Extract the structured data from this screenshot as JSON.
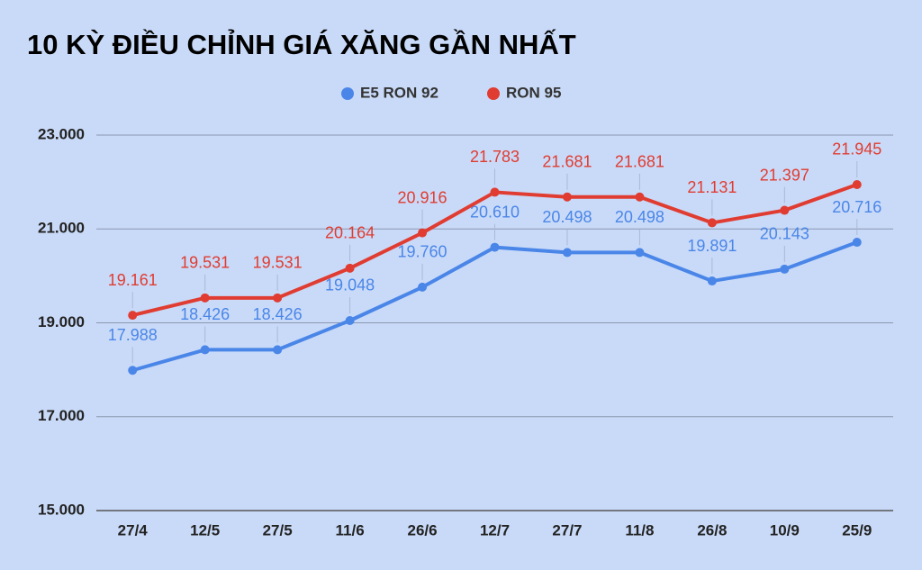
{
  "chart_data": {
    "type": "line",
    "title": "10 KỲ ĐIỀU CHỈNH GIÁ XĂNG GẦN NHẤT",
    "categories": [
      "27/4",
      "12/5",
      "27/5",
      "11/6",
      "26/6",
      "12/7",
      "27/7",
      "11/8",
      "26/8",
      "10/9",
      "25/9"
    ],
    "series": [
      {
        "name": "E5 RON 92",
        "color": "#4a86e8",
        "values": [
          17988,
          18426,
          18426,
          19048,
          19760,
          20610,
          20498,
          20498,
          19891,
          20143,
          20716
        ],
        "value_labels": [
          "17.988",
          "18.426",
          "18.426",
          "19.048",
          "19.760",
          "20.610",
          "20.498",
          "20.498",
          "19.891",
          "20.143",
          "20.716"
        ]
      },
      {
        "name": "RON 95",
        "color": "#e03c31",
        "values": [
          19161,
          19531,
          19531,
          20164,
          20916,
          21783,
          21681,
          21681,
          21131,
          21397,
          21945
        ],
        "value_labels": [
          "19.161",
          "19.531",
          "19.531",
          "20.164",
          "20.916",
          "21.783",
          "21.681",
          "21.681",
          "21.131",
          "21.397",
          "21.945"
        ]
      }
    ],
    "ylim": [
      15000,
      23000
    ],
    "yticks": [
      {
        "value": 15000,
        "label": "15.000"
      },
      {
        "value": 17000,
        "label": "17.000"
      },
      {
        "value": 19000,
        "label": "19.000"
      },
      {
        "value": 21000,
        "label": "21.000"
      },
      {
        "value": 23000,
        "label": "23.000"
      }
    ],
    "grid": true,
    "legend": "top"
  }
}
